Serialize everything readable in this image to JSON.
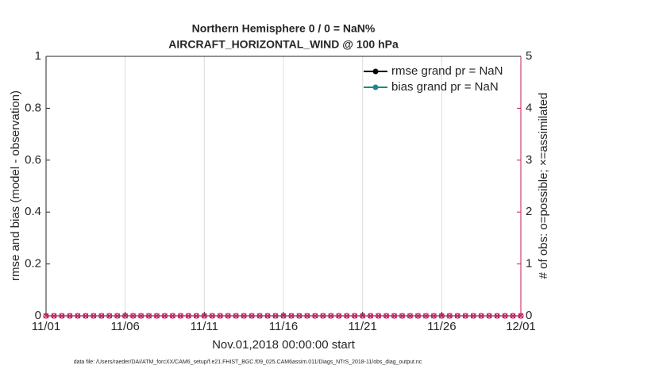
{
  "chart_data": {
    "type": "line",
    "title": "Northern Hemisphere 0 / 0 = NaN%",
    "subtitle": "AIRCRAFT_HORIZONTAL_WIND @ 100 hPa",
    "y_label": "rmse and bias (model - observation)",
    "y2_label": "# of obs: o=possible; ×=assimilated",
    "x_label": "Nov.01,2018 00:00:00 start",
    "footnote": "data file: /Users/raeder/DAI/ATM_forcXX/CAM6_setup/f.e21.FHIST_BGC.f09_025.CAM6assim.011/Diags_NTrS_2018-11/obs_diag_output.nc",
    "xlim": [
      0,
      30
    ],
    "xticks": [
      {
        "value": 0,
        "label": "11/01"
      },
      {
        "value": 5,
        "label": "11/06"
      },
      {
        "value": 10,
        "label": "11/11"
      },
      {
        "value": 15,
        "label": "11/16"
      },
      {
        "value": 20,
        "label": "11/21"
      },
      {
        "value": 25,
        "label": "11/26"
      },
      {
        "value": 30,
        "label": "12/01"
      }
    ],
    "ylim": [
      0,
      1
    ],
    "yticks": [
      0,
      0.2,
      0.4,
      0.6,
      0.8,
      1
    ],
    "y2lim": [
      0,
      5
    ],
    "y2ticks": [
      0,
      1,
      2,
      3,
      4,
      5
    ],
    "y2_color": "#c8175d",
    "grid": true,
    "legend": "top-right",
    "x": [
      0,
      0.5,
      1,
      1.5,
      2,
      2.5,
      3,
      3.5,
      4,
      4.5,
      5,
      5.5,
      6,
      6.5,
      7,
      7.5,
      8,
      8.5,
      9,
      9.5,
      10,
      10.5,
      11,
      11.5,
      12,
      12.5,
      13,
      13.5,
      14,
      14.5,
      15,
      15.5,
      16,
      16.5,
      17,
      17.5,
      18,
      18.5,
      19,
      19.5,
      20,
      20.5,
      21,
      21.5,
      22,
      22.5,
      23,
      23.5,
      24,
      24.5,
      25,
      25.5,
      26,
      26.5,
      27,
      27.5,
      28,
      28.5,
      29,
      29.5,
      30
    ],
    "series": [
      {
        "name": "rmse grand pr = NaN",
        "color": "#000000",
        "marker": "dot",
        "values": [
          null,
          null,
          null,
          null,
          null,
          null,
          null,
          null,
          null,
          null,
          null,
          null,
          null,
          null,
          null,
          null,
          null,
          null,
          null,
          null,
          null,
          null,
          null,
          null,
          null,
          null,
          null,
          null,
          null,
          null,
          null,
          null,
          null,
          null,
          null,
          null,
          null,
          null,
          null,
          null,
          null,
          null,
          null,
          null,
          null,
          null,
          null,
          null,
          null,
          null,
          null,
          null,
          null,
          null,
          null,
          null,
          null,
          null,
          null,
          null,
          null
        ]
      },
      {
        "name": "bias grand pr = NaN",
        "color": "#1a8a8a",
        "marker": "dot",
        "values": [
          null,
          null,
          null,
          null,
          null,
          null,
          null,
          null,
          null,
          null,
          null,
          null,
          null,
          null,
          null,
          null,
          null,
          null,
          null,
          null,
          null,
          null,
          null,
          null,
          null,
          null,
          null,
          null,
          null,
          null,
          null,
          null,
          null,
          null,
          null,
          null,
          null,
          null,
          null,
          null,
          null,
          null,
          null,
          null,
          null,
          null,
          null,
          null,
          null,
          null,
          null,
          null,
          null,
          null,
          null,
          null,
          null,
          null,
          null,
          null,
          null
        ]
      },
      {
        "axis": "y2",
        "color": "#c8175d",
        "marker": "circle",
        "values": [
          0,
          0,
          0,
          0,
          0,
          0,
          0,
          0,
          0,
          0,
          0,
          0,
          0,
          0,
          0,
          0,
          0,
          0,
          0,
          0,
          0,
          0,
          0,
          0,
          0,
          0,
          0,
          0,
          0,
          0,
          0,
          0,
          0,
          0,
          0,
          0,
          0,
          0,
          0,
          0,
          0,
          0,
          0,
          0,
          0,
          0,
          0,
          0,
          0,
          0,
          0,
          0,
          0,
          0,
          0,
          0,
          0,
          0,
          0,
          0,
          0
        ]
      },
      {
        "axis": "y2",
        "color": "#c8175d",
        "marker": "x",
        "values": [
          0,
          0,
          0,
          0,
          0,
          0,
          0,
          0,
          0,
          0,
          0,
          0,
          0,
          0,
          0,
          0,
          0,
          0,
          0,
          0,
          0,
          0,
          0,
          0,
          0,
          0,
          0,
          0,
          0,
          0,
          0,
          0,
          0,
          0,
          0,
          0,
          0,
          0,
          0,
          0,
          0,
          0,
          0,
          0,
          0,
          0,
          0,
          0,
          0,
          0,
          0,
          0,
          0,
          0,
          0,
          0,
          0,
          0,
          0,
          0,
          0
        ]
      }
    ]
  }
}
